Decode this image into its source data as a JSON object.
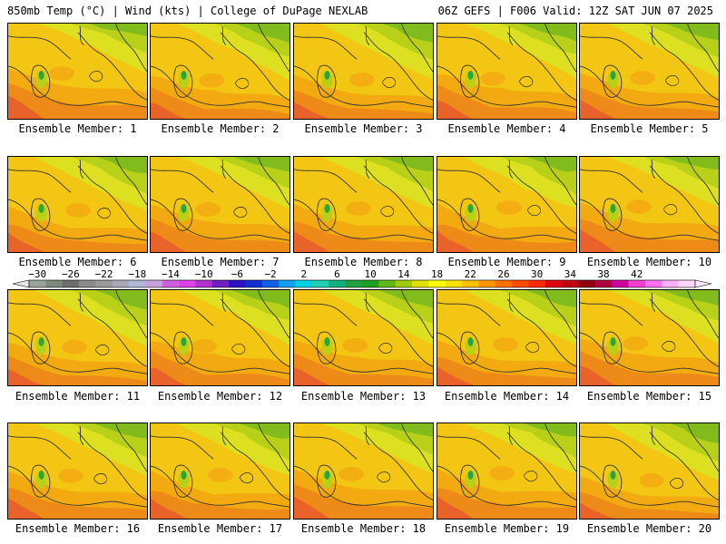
{
  "header": {
    "left_title": "850mb Temp (°C) | Wind (kts) | College of DuPage NEXLAB",
    "right_title": "06Z GEFS | F006 Valid: 12Z SAT JUN 07 2025"
  },
  "members": [
    {
      "label": "Ensemble Member: 1"
    },
    {
      "label": "Ensemble Member: 2"
    },
    {
      "label": "Ensemble Member: 3"
    },
    {
      "label": "Ensemble Member: 4"
    },
    {
      "label": "Ensemble Member: 5"
    },
    {
      "label": "Ensemble Member: 6"
    },
    {
      "label": "Ensemble Member: 7"
    },
    {
      "label": "Ensemble Member: 8"
    },
    {
      "label": "Ensemble Member: 9"
    },
    {
      "label": "Ensemble Member: 10"
    },
    {
      "label": "Ensemble Member: 11"
    },
    {
      "label": "Ensemble Member: 12"
    },
    {
      "label": "Ensemble Member: 13"
    },
    {
      "label": "Ensemble Member: 14"
    },
    {
      "label": "Ensemble Member: 15"
    },
    {
      "label": "Ensemble Member: 16"
    },
    {
      "label": "Ensemble Member: 17"
    },
    {
      "label": "Ensemble Member: 18"
    },
    {
      "label": "Ensemble Member: 19"
    },
    {
      "label": "Ensemble Member: 20"
    }
  ],
  "colorbar": {
    "tick_labels": [
      "−30",
      "−26",
      "−22",
      "−18",
      "−14",
      "−10",
      "−6",
      "−2",
      "2",
      "6",
      "10",
      "14",
      "18",
      "22",
      "26",
      "30",
      "34",
      "38",
      "42"
    ],
    "colors": [
      "#9aa39a",
      "#7f8a7f",
      "#6e6e6e",
      "#8a8a8a",
      "#9a9a9a",
      "#a8a8b8",
      "#b0b8d8",
      "#c8a0e0",
      "#d060e0",
      "#e040e8",
      "#b030d0",
      "#7020c0",
      "#3010c0",
      "#1030d0",
      "#1060e8",
      "#10a0f0",
      "#00d0e8",
      "#20d0b0",
      "#10b080",
      "#20a040",
      "#20a020",
      "#60b818",
      "#a0cc10",
      "#e0e000",
      "#ffff00",
      "#ffe000",
      "#ffc000",
      "#ff9800",
      "#ff6e00",
      "#ff4a00",
      "#ff2800",
      "#e00010",
      "#c00010",
      "#900010",
      "#b00040",
      "#d000a0",
      "#f040d0",
      "#ff70f0",
      "#ffb0ff",
      "#ffd8ff"
    ]
  },
  "map": {
    "temperature_colors": [
      "#f4c614",
      "#f2aa10",
      "#ee8a18",
      "#e8622a",
      "#dce020",
      "#b8d018",
      "#82bc1c"
    ]
  }
}
